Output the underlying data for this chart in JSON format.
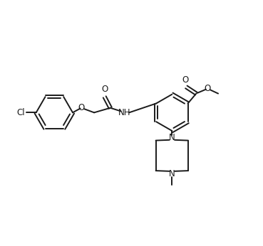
{
  "bg_color": "#ffffff",
  "line_color": "#1a1a1a",
  "line_width": 1.4,
  "font_size": 8.5,
  "figsize": [
    3.69,
    3.46
  ],
  "dpi": 100,
  "xlim": [
    0,
    10
  ],
  "ylim": [
    0,
    9.4
  ]
}
